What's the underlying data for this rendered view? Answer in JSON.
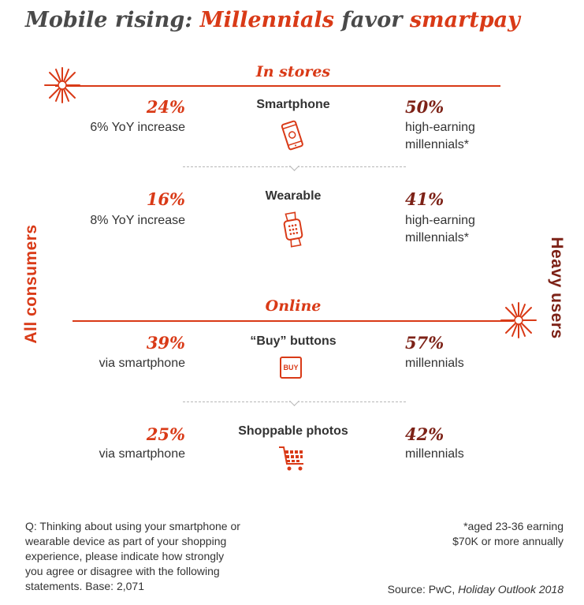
{
  "title": {
    "part1": "Mobile rising: ",
    "highlight1": "Millennials",
    "part2": " favor ",
    "highlight2": "smartpay"
  },
  "side_labels": {
    "left": "All consumers",
    "right": "Heavy users"
  },
  "sections": [
    {
      "label": "In stores",
      "items": [
        {
          "name": "Smartphone",
          "icon": "smartphone-icon",
          "left_pct": "24%",
          "left_text": "6% YoY increase",
          "right_pct": "50%",
          "right_text": [
            "high-earning",
            "millennials*"
          ]
        },
        {
          "name": "Wearable",
          "icon": "smartwatch-icon",
          "left_pct": "16%",
          "left_text": "8% YoY increase",
          "right_pct": "41%",
          "right_text": [
            "high-earning",
            "millennials*"
          ]
        }
      ]
    },
    {
      "label": "Online",
      "items": [
        {
          "name": "“Buy” buttons",
          "icon": "buy-button-icon",
          "icon_text": "BUY",
          "left_pct": "39%",
          "left_text": "via smartphone",
          "right_pct": "57%",
          "right_text": [
            "millennials"
          ]
        },
        {
          "name": "Shoppable photos",
          "icon": "shopping-cart-icon",
          "left_pct": "25%",
          "left_text": "via smartphone",
          "right_pct": "42%",
          "right_text": [
            "millennials"
          ]
        }
      ]
    }
  ],
  "footnote": {
    "question": [
      "Q: Thinking about using your smartphone or",
      "wearable device as part of your shopping",
      "experience, please indicate how strongly",
      "you agree or disagree with the following",
      "statements. Base: 2,071"
    ],
    "note": [
      "*aged 23-36 earning",
      "$70K or more annually"
    ],
    "source_prefix": "Source: PwC, ",
    "source_title": "Holiday Outlook 2018"
  },
  "colors": {
    "accent": "#d93a17",
    "dark_accent": "#7d2217",
    "text": "#333333"
  }
}
